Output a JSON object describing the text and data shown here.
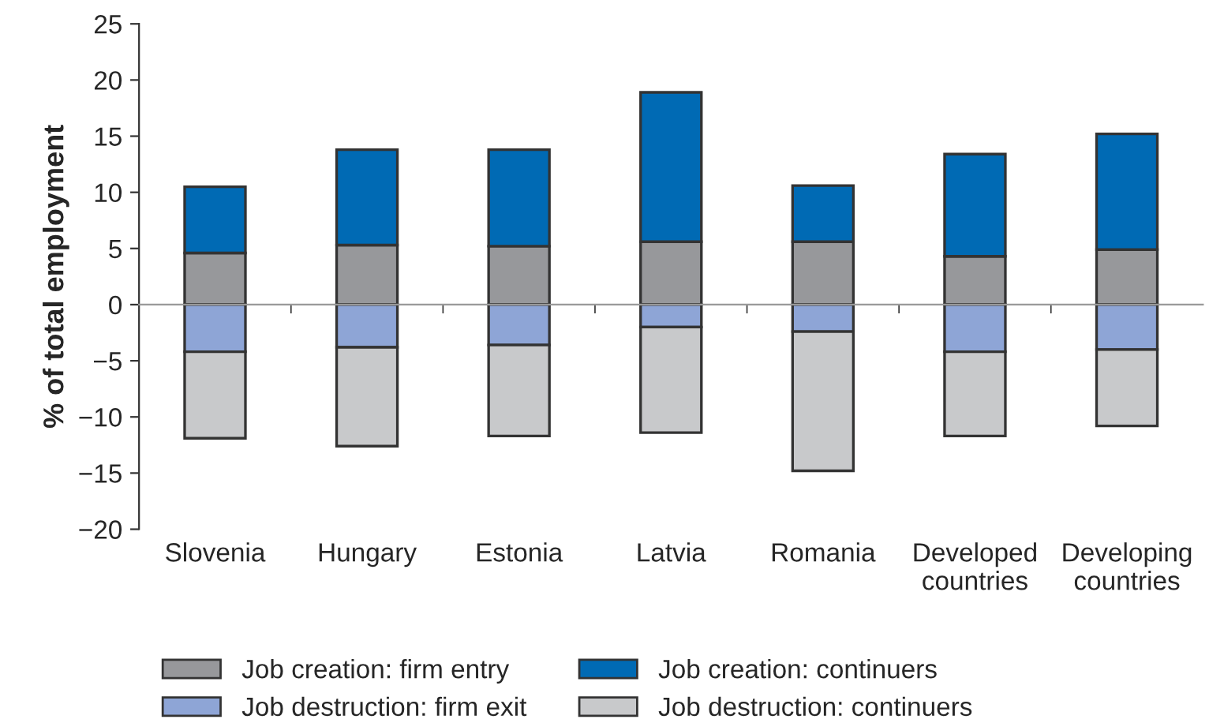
{
  "chart_data": {
    "type": "bar",
    "stacked": true,
    "ylabel": "% of total employment",
    "categories": [
      "Slovenia",
      "Hungary",
      "Estonia",
      "Latvia",
      "Romania",
      "Developed\ncountries",
      "Developing\ncountries"
    ],
    "series": [
      {
        "name": "Job creation: firm entry",
        "color": "#97989b",
        "values": [
          4.6,
          5.3,
          5.2,
          5.6,
          5.6,
          4.3,
          4.9
        ]
      },
      {
        "name": "Job creation: continuers",
        "color": "#006ab4",
        "values": [
          5.9,
          8.5,
          8.6,
          13.3,
          5.0,
          9.1,
          10.3
        ]
      },
      {
        "name": "Job destruction: firm exit",
        "color": "#8ea5d6",
        "values": [
          -4.2,
          -3.8,
          -3.6,
          -2.0,
          -2.4,
          -4.2,
          -4.0
        ]
      },
      {
        "name": "Job destruction: continuers",
        "color": "#c8c9cb",
        "values": [
          -7.7,
          -8.8,
          -8.1,
          -9.4,
          -12.4,
          -7.5,
          -6.8
        ]
      }
    ],
    "ylim": [
      -20,
      25
    ],
    "yticks": [
      {
        "value": -20,
        "label": "−20"
      },
      {
        "value": -15,
        "label": "−15"
      },
      {
        "value": -10,
        "label": "−10"
      },
      {
        "value": -5,
        "label": "−5"
      },
      0,
      5,
      10,
      15,
      20,
      25
    ],
    "legend": "bottom"
  }
}
